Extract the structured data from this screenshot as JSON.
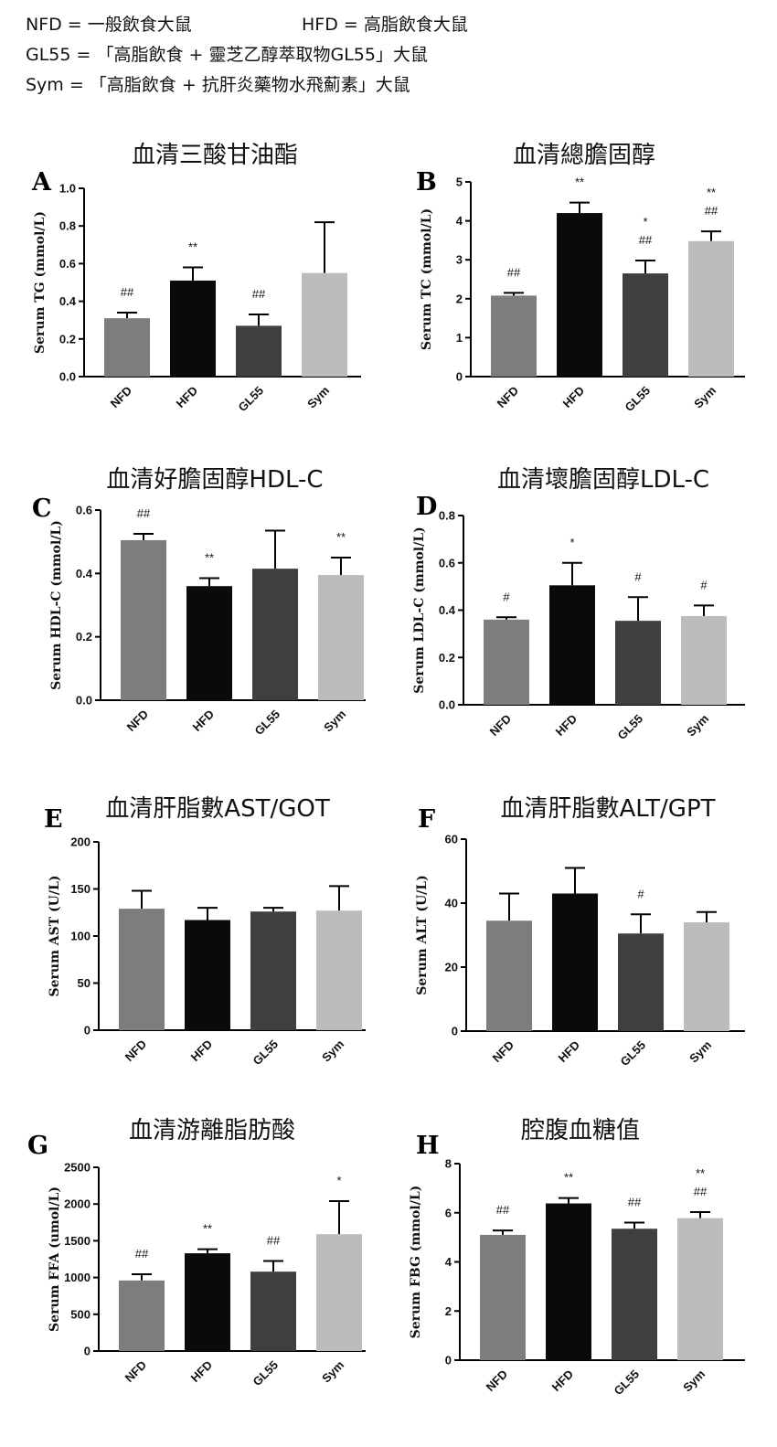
{
  "legend": {
    "nfd": "NFD = 一般飲食大鼠",
    "hfd": "HFD = 高脂飲食大鼠",
    "gl55": "GL55 = 「高脂飲食 + 靈芝乙醇萃取物GL55」大鼠",
    "sym": "Sym = 「高脂飲食 + 抗肝炎藥物水飛薊素」大鼠"
  },
  "bar_colors": [
    "#7d7d7d",
    "#0a0a0a",
    "#3f3f3f",
    "#bcbcbc"
  ],
  "chart_data": [
    {
      "id": "A",
      "type": "bar",
      "title": "血清三酸甘油酯",
      "ylabel": "Serum TG (mmol/L)",
      "categories": [
        "NFD",
        "HFD",
        "GL55",
        "Sym"
      ],
      "values": [
        0.31,
        0.51,
        0.27,
        0.55
      ],
      "errors": [
        0.03,
        0.07,
        0.06,
        0.27
      ],
      "ylim": [
        0,
        1.0
      ],
      "yticks": [
        "0.0",
        "0.2",
        "0.4",
        "0.6",
        "0.8",
        "1.0"
      ],
      "annotations": [
        [
          "##"
        ],
        [
          "**"
        ],
        [
          "##"
        ],
        []
      ]
    },
    {
      "id": "B",
      "type": "bar",
      "title": "血清總膽固醇",
      "ylabel": "Serum TC (mmol/L)",
      "categories": [
        "NFD",
        "HFD",
        "GL55",
        "Sym"
      ],
      "values": [
        2.08,
        4.2,
        2.65,
        3.48
      ],
      "errors": [
        0.07,
        0.27,
        0.33,
        0.25
      ],
      "ylim": [
        0,
        5
      ],
      "yticks": [
        "0",
        "1",
        "2",
        "3",
        "4",
        "5"
      ],
      "annotations": [
        [
          "##"
        ],
        [
          "**"
        ],
        [
          "*",
          "##"
        ],
        [
          "**",
          "##"
        ]
      ]
    },
    {
      "id": "C",
      "type": "bar",
      "title": "血清好膽固醇HDL-C",
      "ylabel": "Serum HDL-C (mmol/L)",
      "categories": [
        "NFD",
        "HFD",
        "GL55",
        "Sym"
      ],
      "values": [
        0.505,
        0.36,
        0.415,
        0.395
      ],
      "errors": [
        0.02,
        0.025,
        0.12,
        0.055
      ],
      "ylim": [
        0,
        0.6
      ],
      "yticks": [
        "0.0",
        "0.2",
        "0.4",
        "0.6"
      ],
      "annotations": [
        [
          "##"
        ],
        [
          "**"
        ],
        [],
        [
          "**"
        ]
      ]
    },
    {
      "id": "D",
      "type": "bar",
      "title": "血清壞膽固醇LDL-C",
      "ylabel": "Serum LDL-C (mmol/L)",
      "categories": [
        "NFD",
        "HFD",
        "GL55",
        "Sym"
      ],
      "values": [
        0.36,
        0.505,
        0.355,
        0.375
      ],
      "errors": [
        0.01,
        0.095,
        0.1,
        0.045
      ],
      "ylim": [
        0,
        0.8
      ],
      "yticks": [
        "0.0",
        "0.2",
        "0.4",
        "0.6",
        "0.8"
      ],
      "annotations": [
        [
          "#"
        ],
        [
          "*"
        ],
        [
          "#"
        ],
        [
          "#"
        ]
      ]
    },
    {
      "id": "E",
      "type": "bar",
      "title": "血清肝脂數AST/GOT",
      "ylabel": "Serum AST (U/L)",
      "categories": [
        "NFD",
        "HFD",
        "GL55",
        "Sym"
      ],
      "values": [
        129,
        117,
        126,
        127
      ],
      "errors": [
        19,
        13,
        4,
        26
      ],
      "ylim": [
        0,
        200
      ],
      "yticks": [
        "0",
        "50",
        "100",
        "150",
        "200"
      ],
      "annotations": [
        [],
        [],
        [],
        []
      ]
    },
    {
      "id": "F",
      "type": "bar",
      "title": "血清肝脂數ALT/GPT",
      "ylabel": "Serum ALT (U/L)",
      "categories": [
        "NFD",
        "HFD",
        "GL55",
        "Sym"
      ],
      "values": [
        34.5,
        43,
        30.5,
        34
      ],
      "errors": [
        8.5,
        8,
        6,
        3.2
      ],
      "ylim": [
        0,
        60
      ],
      "yticks": [
        "0",
        "20",
        "40",
        "60"
      ],
      "annotations": [
        [],
        [],
        [
          "#"
        ],
        []
      ]
    },
    {
      "id": "G",
      "type": "bar",
      "title": "血清游離脂肪酸",
      "ylabel": "Serum FFA (umol/L)",
      "categories": [
        "NFD",
        "HFD",
        "GL55",
        "Sym"
      ],
      "values": [
        960,
        1330,
        1080,
        1590
      ],
      "errors": [
        85,
        55,
        145,
        450
      ],
      "ylim": [
        0,
        2500
      ],
      "yticks": [
        "0",
        "500",
        "1000",
        "1500",
        "2000",
        "2500"
      ],
      "annotations": [
        [
          "##"
        ],
        [
          "**"
        ],
        [
          "##"
        ],
        [
          "*"
        ]
      ]
    },
    {
      "id": "H",
      "type": "bar",
      "title": "腔腹血糖值",
      "ylabel": "Serum FBG (mmol/L)",
      "categories": [
        "NFD",
        "HFD",
        "GL55",
        "Sym"
      ],
      "values": [
        5.1,
        6.38,
        5.35,
        5.78
      ],
      "errors": [
        0.18,
        0.22,
        0.25,
        0.25
      ],
      "ylim": [
        0,
        8
      ],
      "yticks": [
        "0",
        "2",
        "4",
        "6",
        "8"
      ],
      "annotations": [
        [
          "##"
        ],
        [
          "**"
        ],
        [
          "##"
        ],
        [
          "**",
          "##"
        ]
      ]
    }
  ]
}
